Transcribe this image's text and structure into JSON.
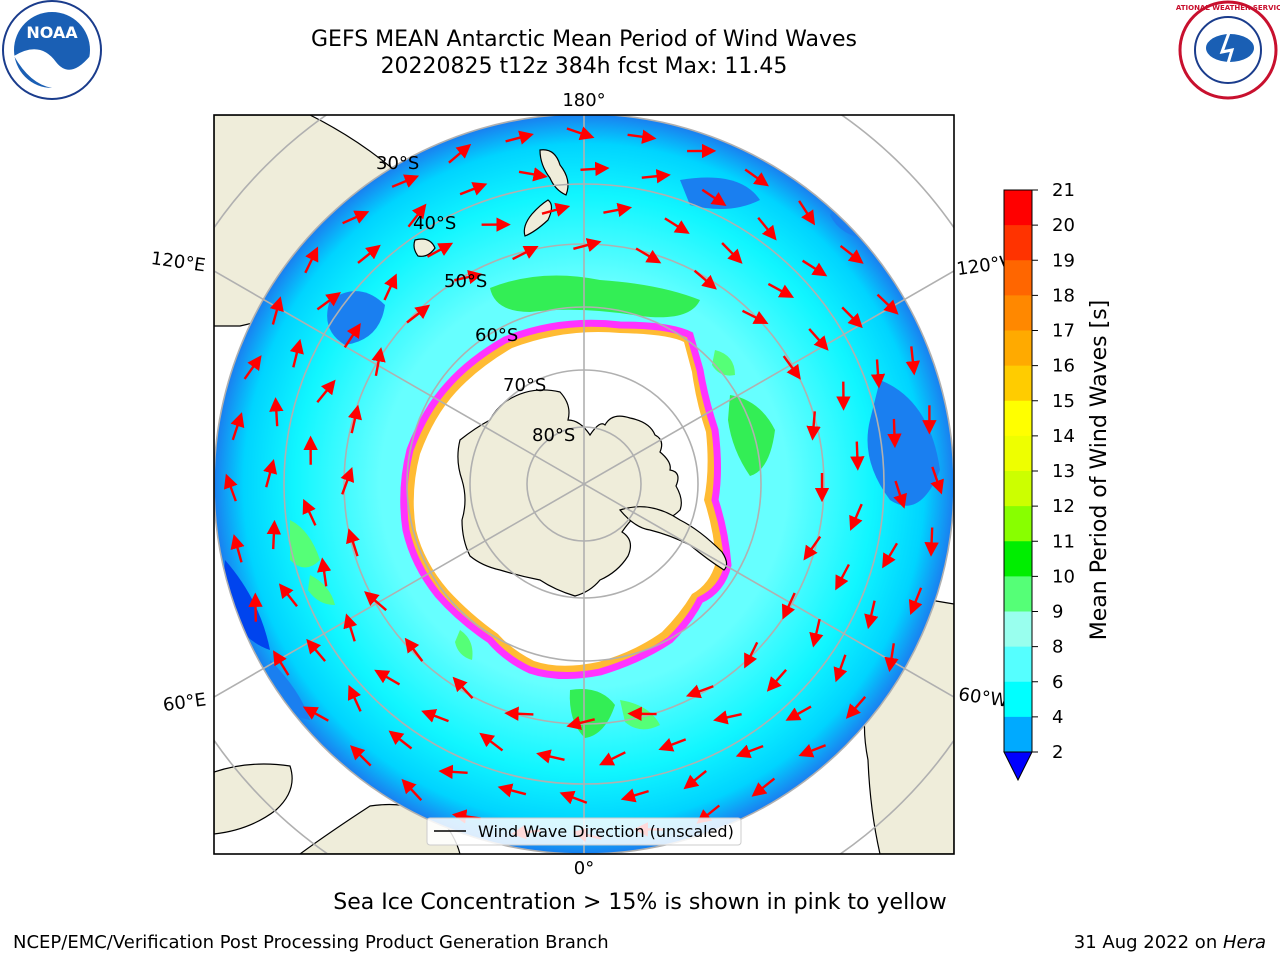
{
  "title": {
    "line1": "GEFS MEAN Antarctic Mean Period of Wind Waves",
    "line2": "20220825 t12z 384h fcst   Max: 11.45"
  },
  "map": {
    "projection": "south-polar-stereographic",
    "meridian_labels": [
      "180°",
      "120°E",
      "120°W",
      "60°E",
      "60°W",
      "0°"
    ],
    "parallel_labels": [
      "30°S",
      "40°S",
      "50°S",
      "60°S",
      "70°S",
      "80°S"
    ],
    "legend_label": "Wind Wave Direction (unscaled)",
    "arrow_color": "#ff0000",
    "land_color": "#efedda",
    "ice_edge_colors": [
      "#ff33ff",
      "#ffbb33"
    ]
  },
  "colorbar": {
    "label": "Mean Period of Wind Waves [s]",
    "ticks": [
      "21",
      "20",
      "19",
      "18",
      "17",
      "16",
      "15",
      "14",
      "13",
      "12",
      "11",
      "10",
      "9",
      "8",
      "6",
      "4",
      "2"
    ],
    "colors": [
      "#ff0000",
      "#ff3300",
      "#ff6600",
      "#ff8800",
      "#ffaa00",
      "#ffcc00",
      "#ffff00",
      "#eeff00",
      "#ccff00",
      "#88ff00",
      "#00ee00",
      "#55ff77",
      "#99ffee",
      "#55ffff",
      "#00ffff",
      "#00aaff",
      "#0033ff"
    ],
    "under_color": "#0000ff"
  },
  "caption": "Sea Ice Concentration > 15% is shown in pink to yellow",
  "footer": {
    "left": "NCEP/EMC/Verification Post Processing Product Generation Branch",
    "right_prefix": "31 Aug 2022 on ",
    "right_italic": "Hera"
  },
  "logos": {
    "noaa_text": "NOAA",
    "nws_text": "NATIONAL WEATHER SERVICE"
  }
}
